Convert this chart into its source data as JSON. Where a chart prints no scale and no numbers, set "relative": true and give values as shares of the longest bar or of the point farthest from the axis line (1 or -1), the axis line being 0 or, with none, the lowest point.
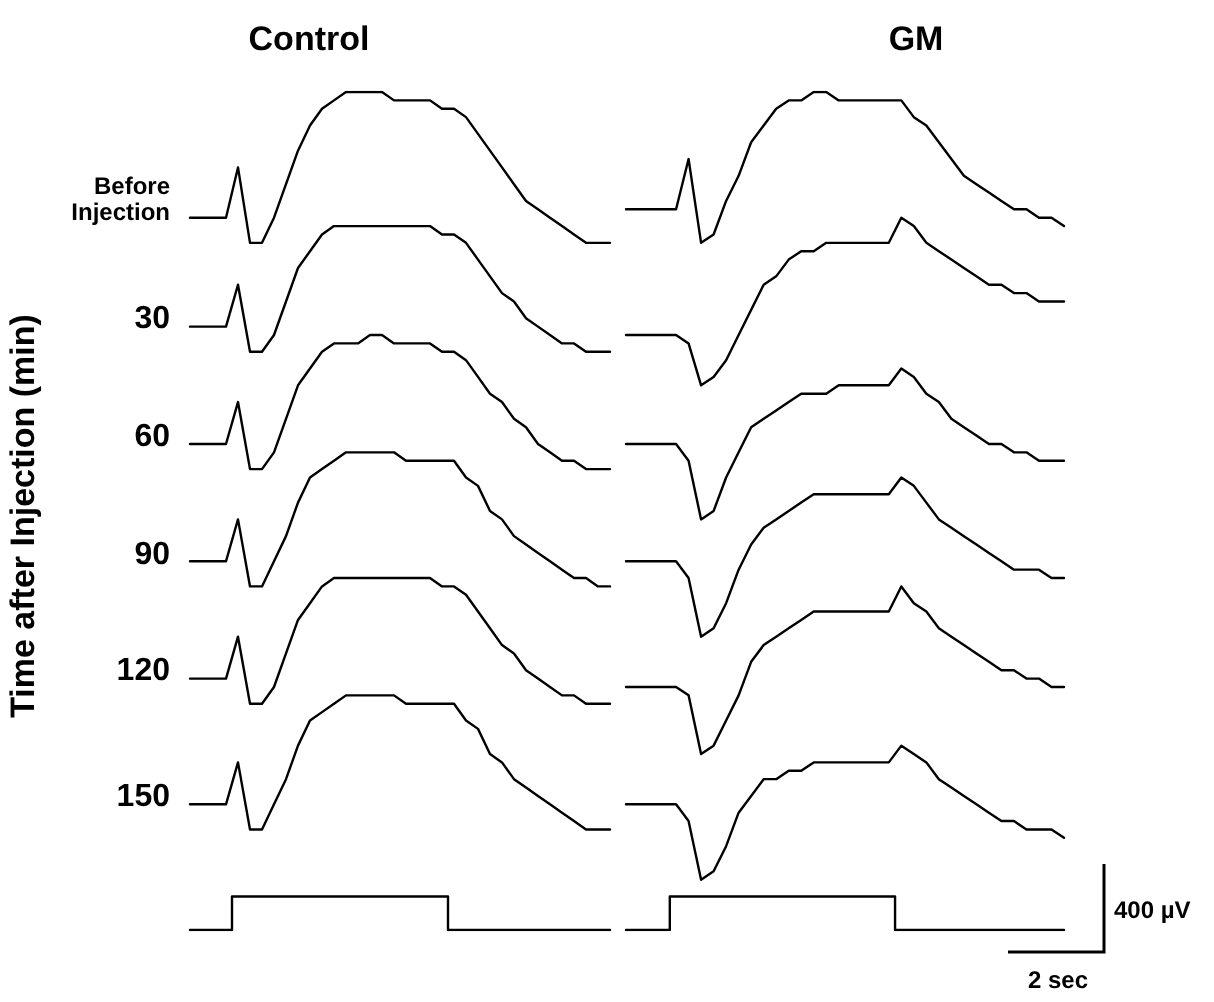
{
  "chart_data": [
    {
      "type": "line",
      "title": "Control",
      "ylabel": "Time after Injection (min)",
      "relative": true,
      "grid": false,
      "marker": "none",
      "line_style": "solid",
      "categories": [
        null,
        null,
        null,
        null,
        null,
        null,
        null,
        null,
        null,
        null,
        null,
        null,
        null,
        null,
        null,
        null,
        null,
        null,
        null,
        null,
        null,
        null,
        null,
        null,
        null,
        null,
        null,
        null,
        null,
        null,
        null,
        null,
        null,
        null,
        null,
        null
      ],
      "annotations": [
        "Before Injection",
        "30",
        "60",
        "90",
        "120",
        "150"
      ],
      "series": [
        {
          "color": "#000000",
          "values": [
            0.85,
            0.85,
            0.85,
            0.85,
            0.91,
            0.82,
            0.82,
            0.85,
            0.89,
            0.93,
            0.96,
            0.98,
            0.99,
            1.0,
            1.0,
            1.0,
            1.0,
            0.99,
            0.99,
            0.99,
            0.99,
            0.98,
            0.98,
            0.97,
            0.95,
            0.93,
            0.91,
            0.89,
            0.87,
            0.86,
            0.85,
            0.84,
            0.83,
            0.82,
            0.82,
            0.82
          ]
        },
        {
          "color": "#000000",
          "values": [
            0.72,
            0.72,
            0.72,
            0.72,
            0.77,
            0.69,
            0.69,
            0.71,
            0.75,
            0.79,
            0.81,
            0.83,
            0.84,
            0.84,
            0.84,
            0.84,
            0.84,
            0.84,
            0.84,
            0.84,
            0.84,
            0.83,
            0.83,
            0.82,
            0.8,
            0.78,
            0.76,
            0.75,
            0.73,
            0.72,
            0.71,
            0.7,
            0.7,
            0.69,
            0.69,
            0.69
          ]
        },
        {
          "color": "#000000",
          "values": [
            0.58,
            0.58,
            0.58,
            0.58,
            0.63,
            0.55,
            0.55,
            0.57,
            0.61,
            0.65,
            0.67,
            0.69,
            0.7,
            0.7,
            0.7,
            0.71,
            0.71,
            0.7,
            0.7,
            0.7,
            0.7,
            0.69,
            0.69,
            0.68,
            0.66,
            0.64,
            0.63,
            0.61,
            0.6,
            0.58,
            0.57,
            0.56,
            0.56,
            0.55,
            0.55,
            0.55
          ]
        },
        {
          "color": "#000000",
          "values": [
            0.44,
            0.44,
            0.44,
            0.44,
            0.49,
            0.41,
            0.41,
            0.44,
            0.47,
            0.51,
            0.54,
            0.55,
            0.56,
            0.57,
            0.57,
            0.57,
            0.57,
            0.57,
            0.56,
            0.56,
            0.56,
            0.56,
            0.56,
            0.54,
            0.53,
            0.5,
            0.49,
            0.47,
            0.46,
            0.45,
            0.44,
            0.43,
            0.42,
            0.42,
            0.41,
            0.41
          ]
        },
        {
          "color": "#000000",
          "values": [
            0.3,
            0.3,
            0.3,
            0.3,
            0.35,
            0.27,
            0.27,
            0.29,
            0.33,
            0.37,
            0.39,
            0.41,
            0.42,
            0.42,
            0.42,
            0.42,
            0.42,
            0.42,
            0.42,
            0.42,
            0.42,
            0.41,
            0.41,
            0.4,
            0.38,
            0.36,
            0.34,
            0.33,
            0.31,
            0.3,
            0.29,
            0.28,
            0.28,
            0.27,
            0.27,
            0.27
          ]
        },
        {
          "color": "#000000",
          "values": [
            0.15,
            0.15,
            0.15,
            0.15,
            0.2,
            0.12,
            0.12,
            0.15,
            0.18,
            0.22,
            0.25,
            0.26,
            0.27,
            0.28,
            0.28,
            0.28,
            0.28,
            0.28,
            0.27,
            0.27,
            0.27,
            0.27,
            0.27,
            0.25,
            0.24,
            0.21,
            0.2,
            0.18,
            0.17,
            0.16,
            0.15,
            0.14,
            0.13,
            0.12,
            0.12,
            0.12
          ]
        },
        {
          "type": "step",
          "color": "#000000",
          "values": [
            0,
            0,
            0,
            0,
            0.04,
            0.04,
            0.04,
            0.04,
            0.04,
            0.04,
            0.04,
            0.04,
            0.04,
            0.04,
            0.04,
            0.04,
            0.04,
            0.04,
            0.04,
            0.04,
            0.04,
            0.04,
            0,
            0,
            0,
            0,
            0,
            0,
            0,
            0,
            0,
            0,
            0,
            0,
            0,
            0
          ]
        }
      ]
    },
    {
      "type": "line",
      "title": "GM",
      "relative": true,
      "grid": false,
      "marker": "none",
      "line_style": "solid",
      "categories": [
        null,
        null,
        null,
        null,
        null,
        null,
        null,
        null,
        null,
        null,
        null,
        null,
        null,
        null,
        null,
        null,
        null,
        null,
        null,
        null,
        null,
        null,
        null,
        null,
        null,
        null,
        null,
        null,
        null,
        null,
        null,
        null,
        null,
        null,
        null,
        null
      ],
      "annotations": [
        "400 µV",
        "2 sec"
      ],
      "series": [
        {
          "color": "#000000",
          "values": [
            0.86,
            0.86,
            0.86,
            0.86,
            0.86,
            0.92,
            0.82,
            0.83,
            0.87,
            0.9,
            0.94,
            0.96,
            0.98,
            0.99,
            0.99,
            1.0,
            1.0,
            0.99,
            0.99,
            0.99,
            0.99,
            0.99,
            0.99,
            0.97,
            0.96,
            0.94,
            0.92,
            0.9,
            0.89,
            0.88,
            0.87,
            0.86,
            0.86,
            0.85,
            0.85,
            0.84
          ]
        },
        {
          "color": "#000000",
          "values": [
            0.71,
            0.71,
            0.71,
            0.71,
            0.71,
            0.7,
            0.65,
            0.66,
            0.68,
            0.71,
            0.74,
            0.77,
            0.78,
            0.8,
            0.81,
            0.81,
            0.82,
            0.82,
            0.82,
            0.82,
            0.82,
            0.82,
            0.85,
            0.84,
            0.82,
            0.81,
            0.8,
            0.79,
            0.78,
            0.77,
            0.77,
            0.76,
            0.76,
            0.75,
            0.75,
            0.75
          ]
        },
        {
          "color": "#000000",
          "values": [
            0.58,
            0.58,
            0.58,
            0.58,
            0.58,
            0.56,
            0.49,
            0.5,
            0.54,
            0.57,
            0.6,
            0.61,
            0.62,
            0.63,
            0.64,
            0.64,
            0.64,
            0.65,
            0.65,
            0.65,
            0.65,
            0.65,
            0.67,
            0.66,
            0.64,
            0.63,
            0.61,
            0.6,
            0.59,
            0.58,
            0.58,
            0.57,
            0.57,
            0.56,
            0.56,
            0.56
          ]
        },
        {
          "color": "#000000",
          "values": [
            0.44,
            0.44,
            0.44,
            0.44,
            0.44,
            0.42,
            0.35,
            0.36,
            0.39,
            0.43,
            0.46,
            0.48,
            0.49,
            0.5,
            0.51,
            0.52,
            0.52,
            0.52,
            0.52,
            0.52,
            0.52,
            0.52,
            0.54,
            0.53,
            0.51,
            0.49,
            0.48,
            0.47,
            0.46,
            0.45,
            0.44,
            0.43,
            0.43,
            0.43,
            0.42,
            0.42
          ]
        },
        {
          "color": "#000000",
          "values": [
            0.29,
            0.29,
            0.29,
            0.29,
            0.29,
            0.28,
            0.21,
            0.22,
            0.25,
            0.28,
            0.32,
            0.34,
            0.35,
            0.36,
            0.37,
            0.38,
            0.38,
            0.38,
            0.38,
            0.38,
            0.38,
            0.38,
            0.41,
            0.39,
            0.38,
            0.36,
            0.35,
            0.34,
            0.33,
            0.32,
            0.31,
            0.31,
            0.3,
            0.3,
            0.29,
            0.29
          ]
        },
        {
          "color": "#000000",
          "values": [
            0.15,
            0.15,
            0.15,
            0.15,
            0.15,
            0.13,
            0.06,
            0.07,
            0.1,
            0.14,
            0.16,
            0.18,
            0.18,
            0.19,
            0.19,
            0.2,
            0.2,
            0.2,
            0.2,
            0.2,
            0.2,
            0.2,
            0.22,
            0.21,
            0.2,
            0.18,
            0.17,
            0.16,
            0.15,
            0.14,
            0.13,
            0.13,
            0.12,
            0.12,
            0.12,
            0.11
          ]
        },
        {
          "type": "step",
          "color": "#000000",
          "values": [
            0,
            0,
            0,
            0,
            0.04,
            0.04,
            0.04,
            0.04,
            0.04,
            0.04,
            0.04,
            0.04,
            0.04,
            0.04,
            0.04,
            0.04,
            0.04,
            0.04,
            0.04,
            0.04,
            0.04,
            0.04,
            0,
            0,
            0,
            0,
            0,
            0,
            0,
            0,
            0,
            0,
            0,
            0,
            0,
            0
          ]
        }
      ]
    }
  ]
}
